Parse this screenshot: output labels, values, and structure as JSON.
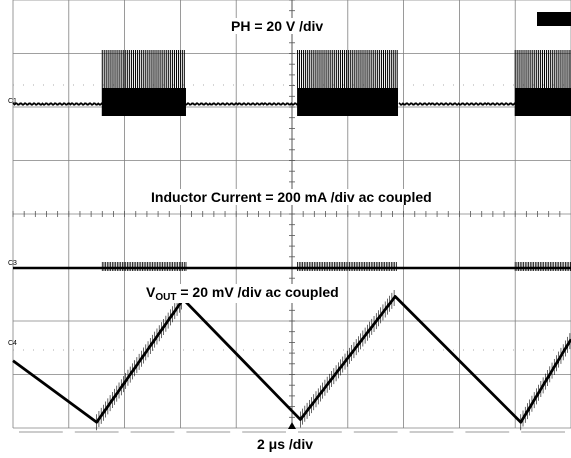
{
  "chart_data": {
    "type": "line",
    "title": "",
    "xlabel": "2 μs /div",
    "grid": true,
    "divisions": {
      "horizontal": 10,
      "vertical": 8
    },
    "channels": [
      {
        "id": "C1",
        "label": "PH = 20 V /div",
        "scale": "20 V /div",
        "description": "switching bursts",
        "bursts_div": [
          [
            1.6,
            3.1
          ],
          [
            5.1,
            6.9
          ],
          [
            9.0,
            10.0
          ]
        ]
      },
      {
        "id": "C3",
        "label": "Inductor Current = 200 mA /div ac coupled",
        "scale": "200 mA /div",
        "coupling": "ac",
        "bursts_div": [
          [
            1.6,
            3.1
          ],
          [
            5.1,
            6.9
          ],
          [
            9.0,
            10.0
          ]
        ]
      },
      {
        "id": "C4",
        "label_main": "V",
        "label_sub": "OUT",
        "label_rest": " = 20 mV /div ac coupled",
        "scale": "20 mV /div",
        "coupling": "ac",
        "waveform_x_div": [
          0.0,
          1.5,
          3.05,
          5.15,
          6.85,
          9.1,
          10.0
        ],
        "waveform_y_div": [
          -0.2,
          -1.35,
          0.95,
          -1.3,
          1.0,
          -1.35,
          0.2
        ]
      }
    ]
  },
  "top_right_badge": "",
  "channel_tags": {
    "c1": "C1",
    "c3": "C3",
    "c4": "C4"
  }
}
